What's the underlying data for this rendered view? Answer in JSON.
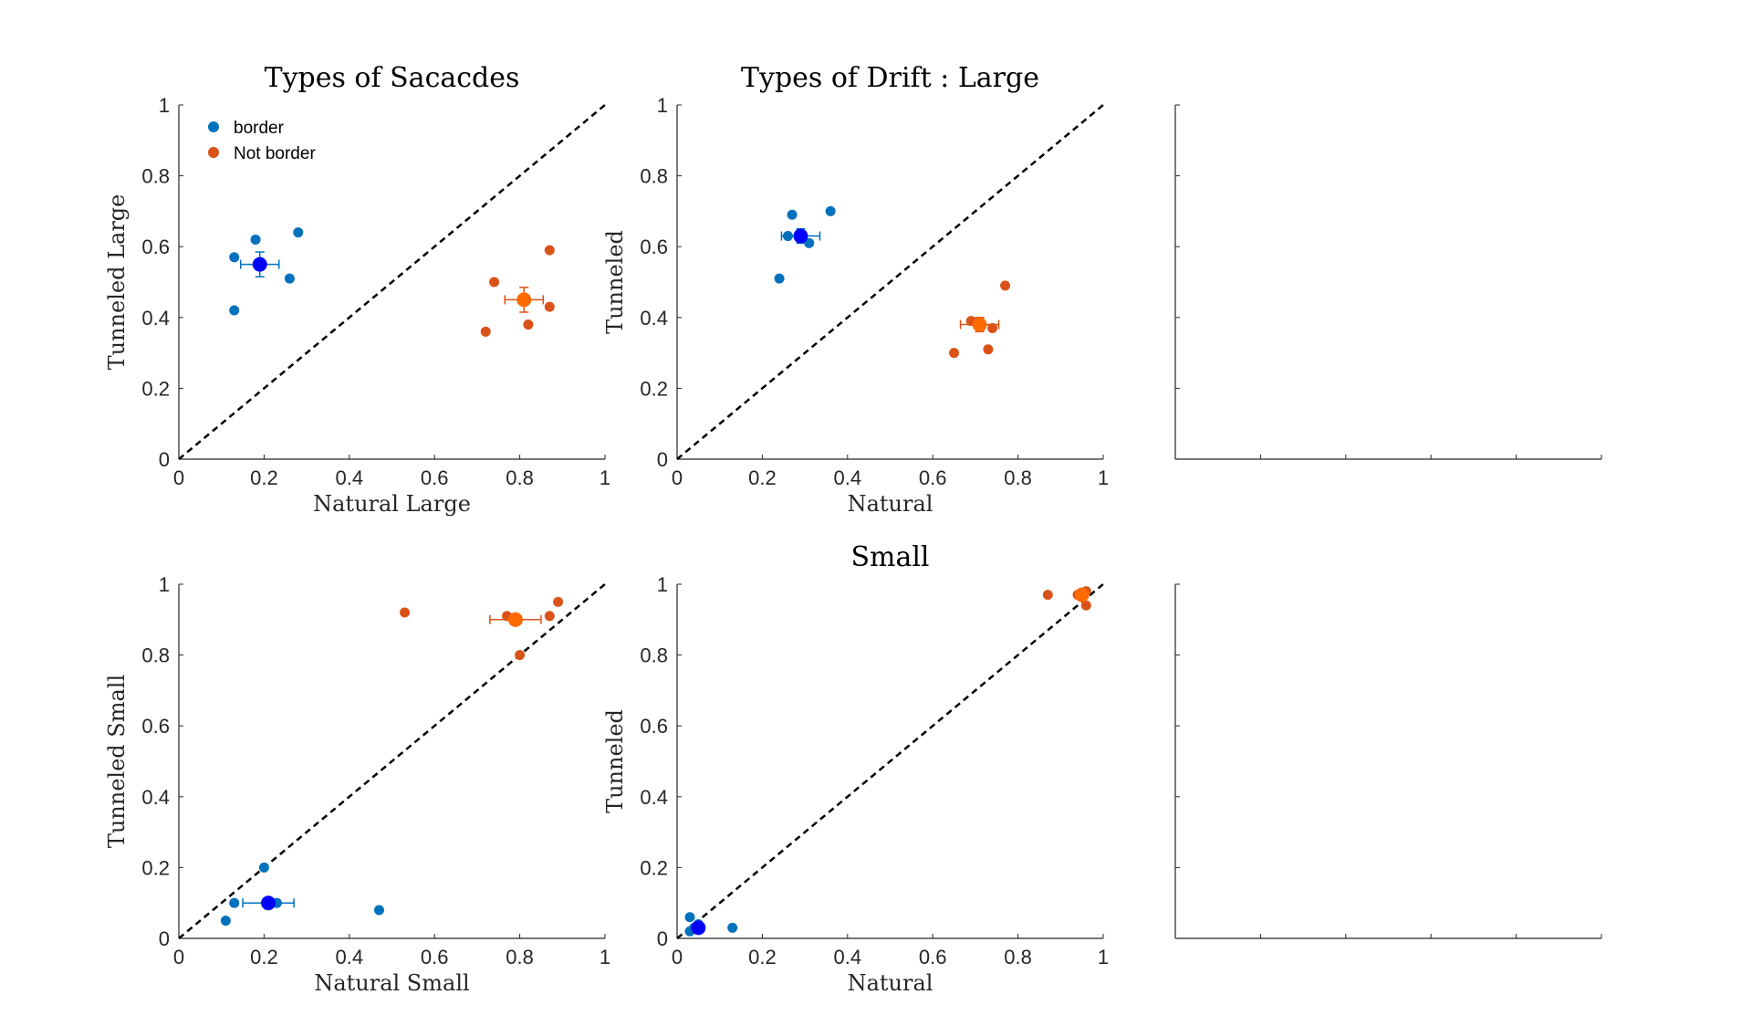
{
  "chart_data": [
    {
      "type": "scatter",
      "title": "Types of Sacacdes",
      "xlabel": "Natural Large",
      "ylabel": "Tunneled Large",
      "xlim": [
        0,
        1
      ],
      "ylim": [
        0,
        1
      ],
      "ticks": [
        "0",
        "0.2",
        "0.4",
        "0.6",
        "0.8",
        "1"
      ],
      "diagonal": true,
      "legend": {
        "placement": "top-left",
        "entries": [
          "border",
          "Not border"
        ]
      },
      "series": [
        {
          "name": "border",
          "color": "#0072BD",
          "points": [
            [
              0.13,
              0.57
            ],
            [
              0.18,
              0.62
            ],
            [
              0.28,
              0.64
            ],
            [
              0.26,
              0.51
            ],
            [
              0.13,
              0.42
            ]
          ],
          "mean": {
            "x": 0.19,
            "y": 0.55,
            "xerr": 0.045,
            "yerr": 0.035,
            "color": "#0000FF"
          }
        },
        {
          "name": "Not border",
          "color": "#D95319",
          "points": [
            [
              0.74,
              0.5
            ],
            [
              0.87,
              0.59
            ],
            [
              0.87,
              0.43
            ],
            [
              0.82,
              0.38
            ],
            [
              0.72,
              0.36
            ]
          ],
          "mean": {
            "x": 0.81,
            "y": 0.45,
            "xerr": 0.045,
            "yerr": 0.035,
            "color": "#FF6A00"
          }
        }
      ]
    },
    {
      "type": "scatter",
      "title": "Types of Drift : Large",
      "xlabel": "Natural",
      "ylabel": "Tunneled",
      "xlim": [
        0,
        1
      ],
      "ylim": [
        0,
        1
      ],
      "ticks": [
        "0",
        "0.2",
        "0.4",
        "0.6",
        "0.8",
        "1"
      ],
      "diagonal": true,
      "series": [
        {
          "color": "#0072BD",
          "points": [
            [
              0.27,
              0.69
            ],
            [
              0.36,
              0.7
            ],
            [
              0.26,
              0.63
            ],
            [
              0.31,
              0.61
            ],
            [
              0.24,
              0.51
            ]
          ],
          "mean": {
            "x": 0.29,
            "y": 0.63,
            "xerr": 0.045,
            "yerr": 0.02,
            "color": "#0000FF"
          }
        },
        {
          "color": "#D95319",
          "points": [
            [
              0.77,
              0.49
            ],
            [
              0.69,
              0.39
            ],
            [
              0.74,
              0.37
            ],
            [
              0.73,
              0.31
            ],
            [
              0.65,
              0.3
            ]
          ],
          "mean": {
            "x": 0.71,
            "y": 0.38,
            "xerr": 0.045,
            "yerr": 0.02,
            "color": "#FF6A00"
          }
        }
      ]
    },
    {
      "type": "scatter",
      "title": "",
      "xlabel": "",
      "ylabel": "",
      "empty": true
    },
    {
      "type": "scatter",
      "title": "",
      "xlabel": "Natural Small",
      "ylabel": "Tunneled Small",
      "xlim": [
        0,
        1
      ],
      "ylim": [
        0,
        1
      ],
      "ticks": [
        "0",
        "0.2",
        "0.4",
        "0.6",
        "0.8",
        "1"
      ],
      "diagonal": true,
      "series": [
        {
          "color": "#0072BD",
          "points": [
            [
              0.2,
              0.2
            ],
            [
              0.13,
              0.1
            ],
            [
              0.23,
              0.1
            ],
            [
              0.11,
              0.05
            ],
            [
              0.47,
              0.08
            ]
          ],
          "mean": {
            "x": 0.21,
            "y": 0.1,
            "xerr": 0.06,
            "yerr": 0.0,
            "color": "#0000FF"
          }
        },
        {
          "color": "#D95319",
          "points": [
            [
              0.53,
              0.92
            ],
            [
              0.77,
              0.91
            ],
            [
              0.89,
              0.95
            ],
            [
              0.87,
              0.91
            ],
            [
              0.8,
              0.8
            ]
          ],
          "mean": {
            "x": 0.79,
            "y": 0.9,
            "xerr": 0.06,
            "yerr": 0.0,
            "color": "#FF6A00"
          }
        }
      ]
    },
    {
      "type": "scatter",
      "title": "Small",
      "xlabel": "Natural",
      "ylabel": "Tunneled",
      "xlim": [
        0,
        1
      ],
      "ylim": [
        0,
        1
      ],
      "ticks": [
        "0",
        "0.2",
        "0.4",
        "0.6",
        "0.8",
        "1"
      ],
      "diagonal": true,
      "series": [
        {
          "color": "#0072BD",
          "points": [
            [
              0.03,
              0.06
            ],
            [
              0.13,
              0.03
            ],
            [
              0.04,
              0.03
            ],
            [
              0.03,
              0.02
            ],
            [
              0.05,
              0.04
            ]
          ],
          "mean": {
            "x": 0.05,
            "y": 0.03,
            "xerr": 0.01,
            "yerr": 0.01,
            "color": "#0000FF"
          }
        },
        {
          "color": "#D95319",
          "points": [
            [
              0.87,
              0.97
            ],
            [
              0.96,
              0.98
            ],
            [
              0.96,
              0.94
            ],
            [
              0.95,
              0.97
            ],
            [
              0.94,
              0.97
            ]
          ],
          "mean": {
            "x": 0.95,
            "y": 0.97,
            "xerr": 0.01,
            "yerr": 0.01,
            "color": "#FF6A00"
          }
        }
      ]
    },
    {
      "type": "scatter",
      "title": "",
      "xlabel": "",
      "ylabel": "",
      "empty": true
    }
  ]
}
